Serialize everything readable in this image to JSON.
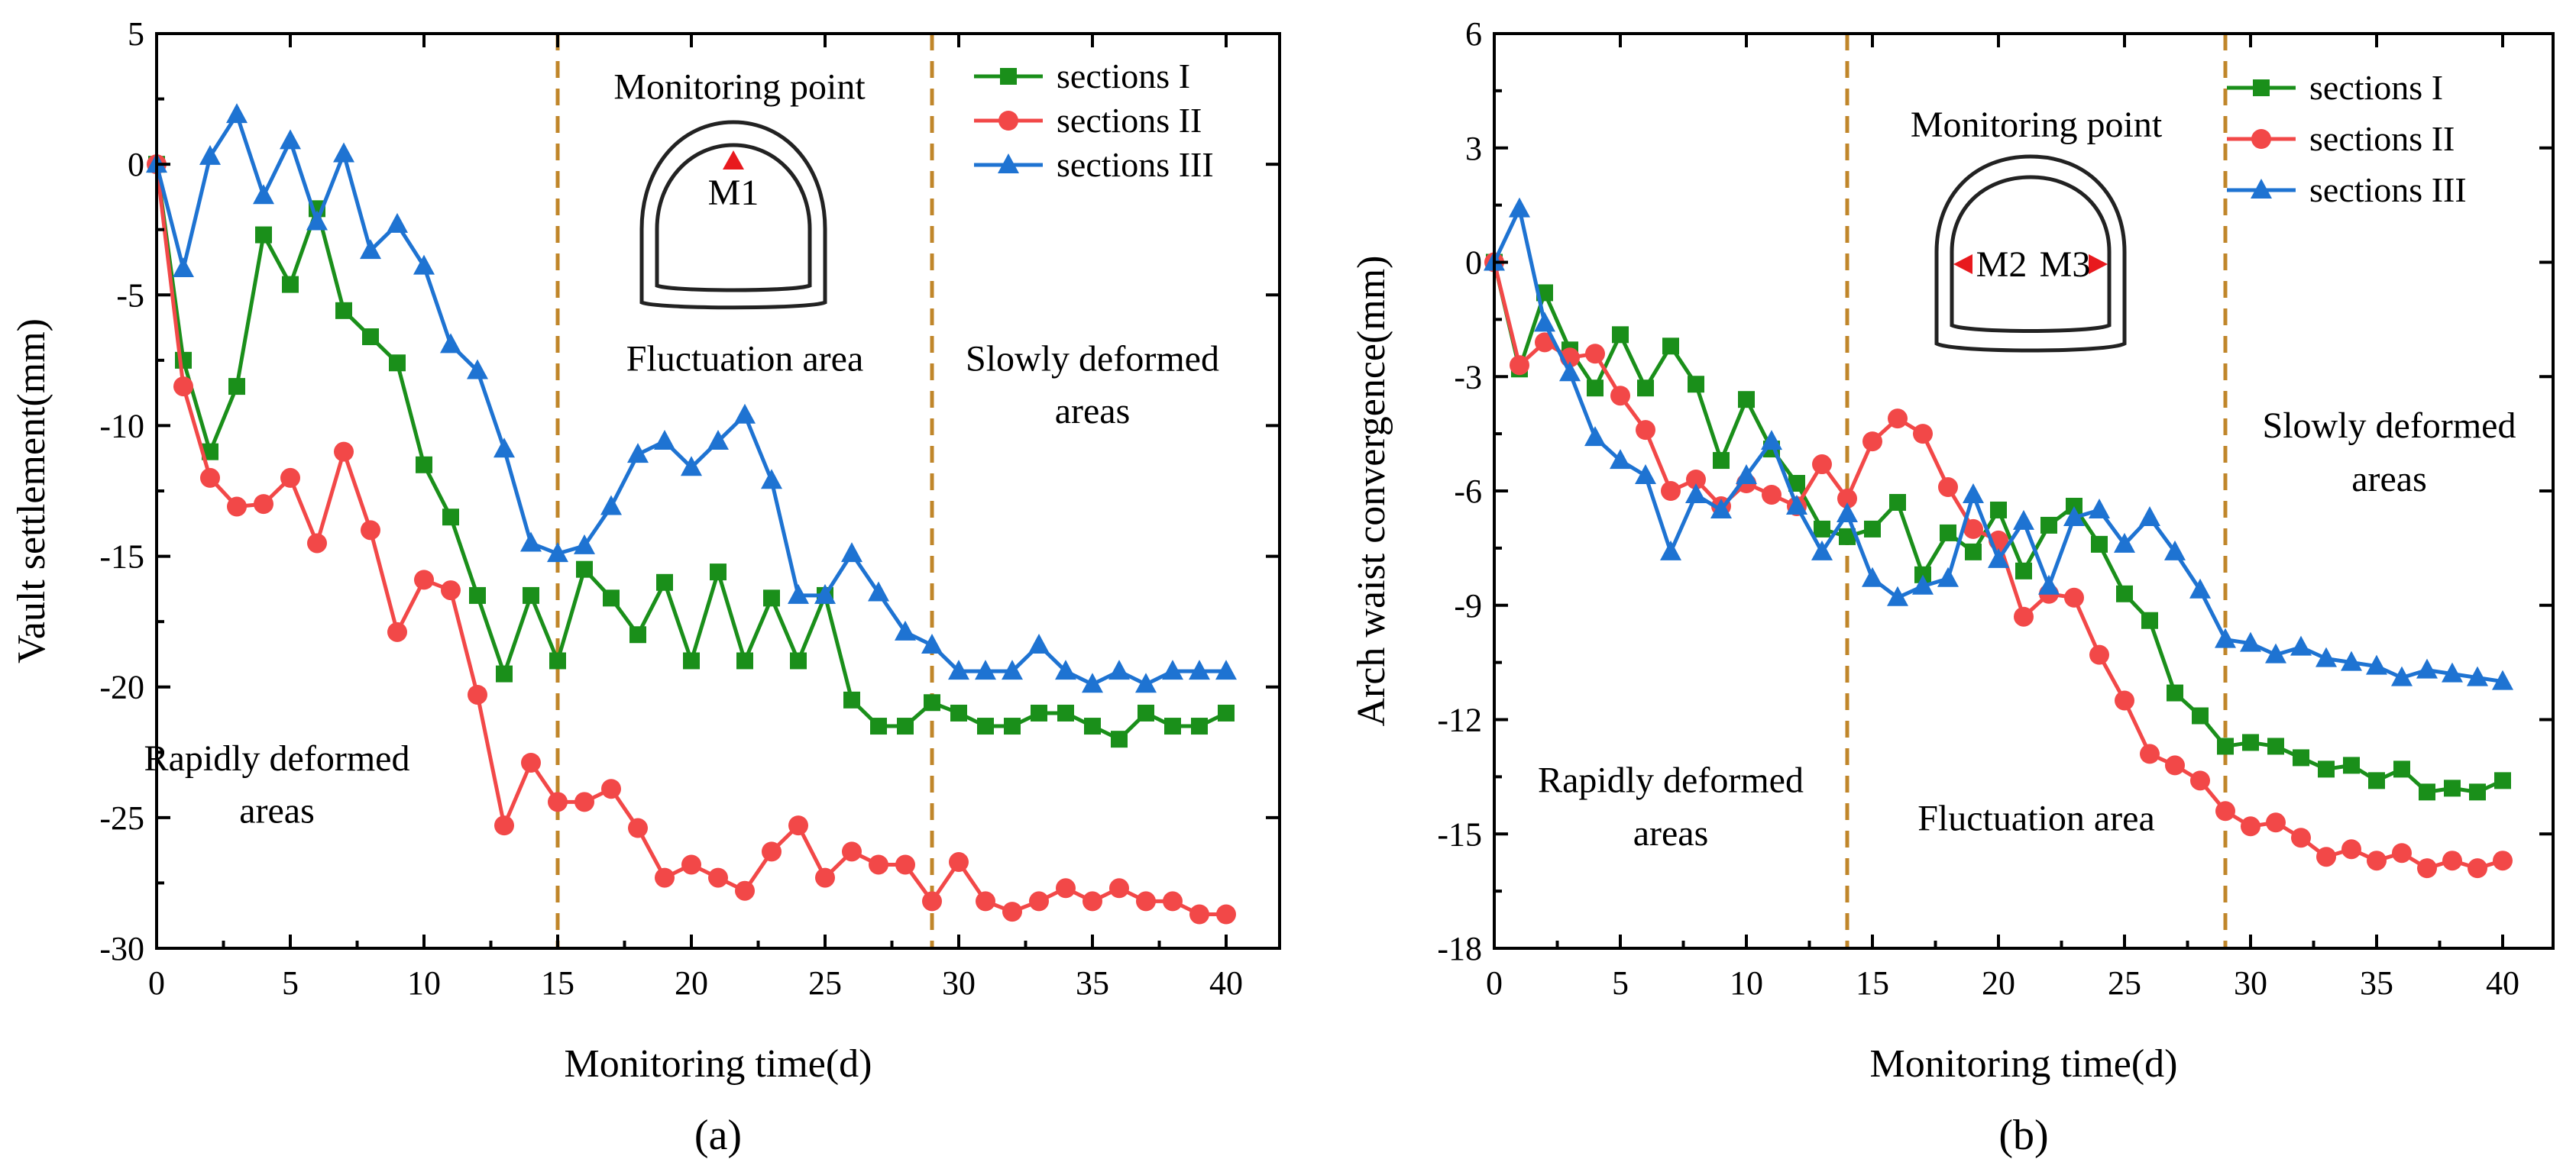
{
  "chart_data": [
    {
      "panel": "a",
      "type": "line",
      "panel_label": "(a)",
      "xlabel": "Monitoring time(d)",
      "ylabel": "Vault settlement(mm)",
      "xlim": [
        0,
        42
      ],
      "ylim": [
        -30,
        5
      ],
      "xticks": [
        0,
        5,
        10,
        15,
        20,
        25,
        30,
        35,
        40
      ],
      "yticks": [
        5,
        0,
        -5,
        -10,
        -15,
        -20,
        -25,
        -30
      ],
      "dividers": [
        15,
        29
      ],
      "legend_position": "top-right",
      "annotations": [
        {
          "text": "Monitoring point",
          "x": 21.8,
          "y": 2.5
        },
        {
          "text": "Fluctuation area",
          "x": 22,
          "y": -7.9
        },
        {
          "text": "Slowly deformed",
          "x": 35,
          "y": -7.9
        },
        {
          "text": "areas",
          "x": 35,
          "y": -9.9
        },
        {
          "text": "Rapidly deformed",
          "x": 4.5,
          "y": -23.2
        },
        {
          "text": "areas",
          "x": 4.5,
          "y": -25.2
        }
      ],
      "inset": {
        "marker_label": "M1"
      },
      "series": [
        {
          "name": "sections I",
          "color": "#1A8F1A",
          "marker": "square",
          "x": [
            0,
            1,
            2,
            3,
            4,
            5,
            6,
            7,
            8,
            9,
            10,
            11,
            12,
            13,
            14,
            15,
            16,
            17,
            18,
            19,
            20,
            21,
            22,
            23,
            24,
            25,
            26,
            27,
            28,
            29,
            30,
            31,
            32,
            33,
            34,
            35,
            36,
            37,
            38,
            39,
            40
          ],
          "values": [
            0,
            -7.5,
            -11,
            -8.5,
            -2.7,
            -4.6,
            -1.7,
            -5.6,
            -6.6,
            -7.6,
            -11.5,
            -13.5,
            -16.5,
            -19.5,
            -16.5,
            -19,
            -15.5,
            -16.6,
            -18,
            -16,
            -19,
            -15.6,
            -19,
            -16.6,
            -19,
            -16.5,
            -20.5,
            -21.5,
            -21.5,
            -20.6,
            -21,
            -21.5,
            -21.5,
            -21,
            -21,
            -21.5,
            -22,
            -21,
            -21.5,
            -21.5,
            -21
          ]
        },
        {
          "name": "sections II",
          "color": "#F24848",
          "marker": "circle",
          "x": [
            0,
            1,
            2,
            3,
            4,
            5,
            6,
            7,
            8,
            9,
            10,
            11,
            12,
            13,
            14,
            15,
            16,
            17,
            18,
            19,
            20,
            21,
            22,
            23,
            24,
            25,
            26,
            27,
            28,
            29,
            30,
            31,
            32,
            33,
            34,
            35,
            36,
            37,
            38,
            39,
            40
          ],
          "values": [
            0,
            -8.5,
            -12,
            -13.1,
            -13,
            -12,
            -14.5,
            -11,
            -14,
            -17.9,
            -15.9,
            -16.3,
            -20.3,
            -25.3,
            -22.9,
            -24.4,
            -24.4,
            -23.9,
            -25.4,
            -27.3,
            -26.8,
            -27.3,
            -27.8,
            -26.3,
            -25.3,
            -27.3,
            -26.3,
            -26.8,
            -26.8,
            -28.2,
            -26.7,
            -28.2,
            -28.6,
            -28.2,
            -27.7,
            -28.2,
            -27.7,
            -28.2,
            -28.2,
            -28.7,
            -28.7
          ]
        },
        {
          "name": "sections III",
          "color": "#1E73D2",
          "marker": "triangle-up",
          "x": [
            0,
            1,
            2,
            3,
            4,
            5,
            6,
            7,
            8,
            9,
            10,
            11,
            12,
            13,
            14,
            15,
            16,
            17,
            18,
            19,
            20,
            21,
            22,
            23,
            24,
            25,
            26,
            27,
            28,
            29,
            30,
            31,
            32,
            33,
            34,
            35,
            36,
            37,
            38,
            39,
            40
          ],
          "values": [
            0,
            -4,
            0.3,
            1.9,
            -1.2,
            0.9,
            -2.2,
            0.4,
            -3.3,
            -2.3,
            -3.9,
            -6.9,
            -7.9,
            -10.9,
            -14.5,
            -14.9,
            -14.6,
            -13.1,
            -11.1,
            -10.6,
            -11.6,
            -10.6,
            -9.6,
            -12.1,
            -16.5,
            -16.5,
            -14.9,
            -16.4,
            -17.9,
            -18.4,
            -19.4,
            -19.4,
            -19.4,
            -18.4,
            -19.4,
            -19.9,
            -19.4,
            -19.9,
            -19.4,
            -19.4,
            -19.4
          ]
        }
      ]
    },
    {
      "panel": "b",
      "type": "line",
      "panel_label": "(b)",
      "xlabel": "Monitoring time(d)",
      "ylabel": "Arch waist convergence(mm)",
      "xlim": [
        0,
        42
      ],
      "ylim": [
        -18,
        6
      ],
      "xticks": [
        0,
        5,
        10,
        15,
        20,
        25,
        30,
        35,
        40
      ],
      "yticks": [
        6,
        3,
        0,
        -3,
        -6,
        -9,
        -12,
        -15,
        -18
      ],
      "dividers": [
        14,
        29
      ],
      "legend_position": "top-right",
      "annotations": [
        {
          "text": "Monitoring point",
          "x": 21.5,
          "y": 3.3
        },
        {
          "text": "Slowly deformed",
          "x": 35.5,
          "y": -4.6
        },
        {
          "text": "areas",
          "x": 35.5,
          "y": -6.0
        },
        {
          "text": "Rapidly deformed",
          "x": 7,
          "y": -13.9
        },
        {
          "text": "areas",
          "x": 7,
          "y": -15.3
        },
        {
          "text": "Fluctuation area",
          "x": 21.5,
          "y": -14.9
        }
      ],
      "inset": {
        "marker_label_left": "M2",
        "marker_label_right": "M3"
      },
      "series": [
        {
          "name": "sections I",
          "color": "#1A8F1A",
          "marker": "square",
          "x": [
            0,
            1,
            2,
            3,
            4,
            5,
            6,
            7,
            8,
            9,
            10,
            11,
            12,
            13,
            14,
            15,
            16,
            17,
            18,
            19,
            20,
            21,
            22,
            23,
            24,
            25,
            26,
            27,
            28,
            29,
            30,
            31,
            32,
            33,
            34,
            35,
            36,
            37,
            38,
            39,
            40
          ],
          "values": [
            0,
            -2.8,
            -0.8,
            -2.3,
            -3.3,
            -1.9,
            -3.3,
            -2.2,
            -3.2,
            -5.2,
            -3.6,
            -4.9,
            -5.8,
            -7,
            -7.2,
            -7,
            -6.3,
            -8.2,
            -7.1,
            -7.6,
            -6.5,
            -8.1,
            -6.9,
            -6.4,
            -7.4,
            -8.7,
            -9.4,
            -11.3,
            -11.9,
            -12.7,
            -12.6,
            -12.7,
            -13,
            -13.3,
            -13.2,
            -13.6,
            -13.3,
            -13.9,
            -13.8,
            -13.9,
            -13.6
          ]
        },
        {
          "name": "sections II",
          "color": "#F24848",
          "marker": "circle",
          "x": [
            0,
            1,
            2,
            3,
            4,
            5,
            6,
            7,
            8,
            9,
            10,
            11,
            12,
            13,
            14,
            15,
            16,
            17,
            18,
            19,
            20,
            21,
            22,
            23,
            24,
            25,
            26,
            27,
            28,
            29,
            30,
            31,
            32,
            33,
            34,
            35,
            36,
            37,
            38,
            39,
            40
          ],
          "values": [
            0,
            -2.7,
            -2.1,
            -2.5,
            -2.4,
            -3.5,
            -4.4,
            -6,
            -5.7,
            -6.4,
            -5.8,
            -6.1,
            -6.4,
            -5.3,
            -6.2,
            -4.7,
            -4.1,
            -4.5,
            -5.9,
            -7,
            -7.3,
            -9.3,
            -8.7,
            -8.8,
            -10.3,
            -11.5,
            -12.9,
            -13.2,
            -13.6,
            -14.4,
            -14.8,
            -14.7,
            -15.1,
            -15.6,
            -15.4,
            -15.7,
            -15.5,
            -15.9,
            -15.7,
            -15.9,
            -15.7
          ]
        },
        {
          "name": "sections III",
          "color": "#1E73D2",
          "marker": "triangle-up",
          "x": [
            0,
            1,
            2,
            3,
            4,
            5,
            6,
            7,
            8,
            9,
            10,
            11,
            12,
            13,
            14,
            15,
            16,
            17,
            18,
            19,
            20,
            21,
            22,
            23,
            24,
            25,
            26,
            27,
            28,
            29,
            30,
            31,
            32,
            33,
            34,
            35,
            36,
            37,
            38,
            39,
            40
          ],
          "values": [
            0,
            1.4,
            -1.6,
            -2.9,
            -4.6,
            -5.2,
            -5.6,
            -7.6,
            -6.1,
            -6.5,
            -5.6,
            -4.7,
            -6.4,
            -7.6,
            -6.6,
            -8.3,
            -8.8,
            -8.5,
            -8.3,
            -6.1,
            -7.8,
            -6.8,
            -8.5,
            -6.7,
            -6.5,
            -7.4,
            -6.7,
            -7.6,
            -8.6,
            -9.9,
            -10,
            -10.3,
            -10.1,
            -10.4,
            -10.5,
            -10.6,
            -10.9,
            -10.7,
            -10.8,
            -10.9,
            -11
          ]
        }
      ]
    }
  ]
}
